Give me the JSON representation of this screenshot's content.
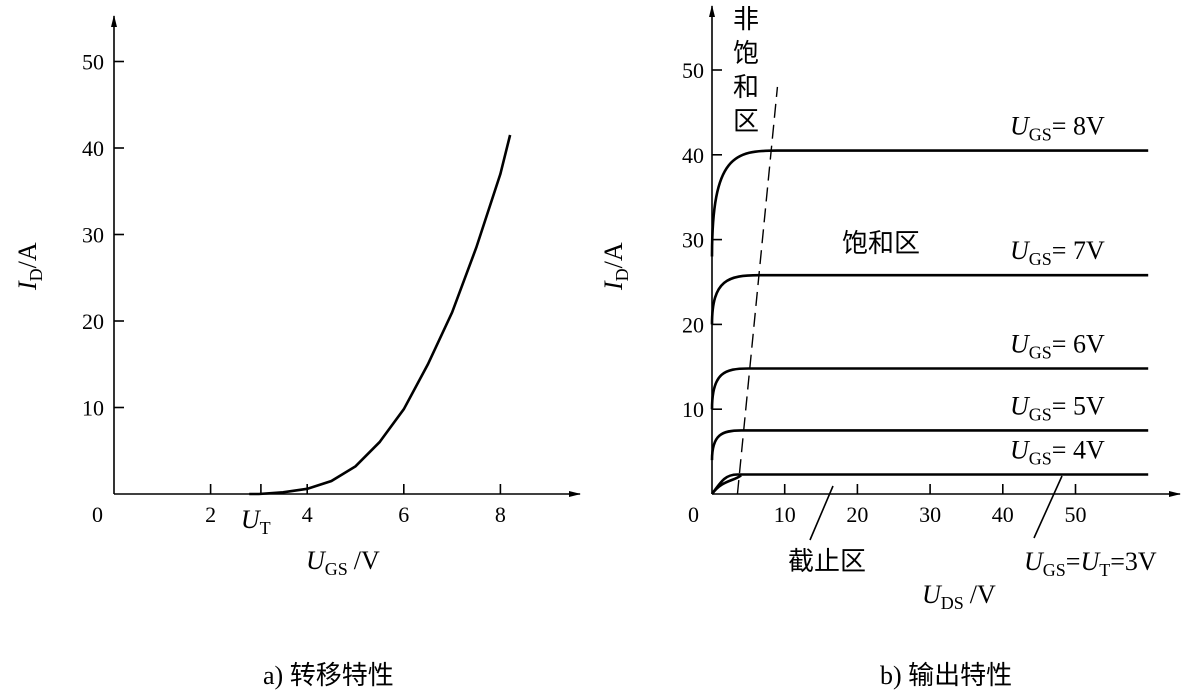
{
  "chart_data": [
    {
      "type": "line",
      "caption": "a) 转移特性",
      "xlabel": {
        "var": "U",
        "sub": "GS",
        "unit": "/V"
      },
      "ylabel": {
        "var": "I",
        "sub": "D",
        "unit": "/A"
      },
      "origin_label": "0",
      "xlim": [
        0,
        10
      ],
      "ylim": [
        0,
        55
      ],
      "x_ticks": [
        2,
        4,
        6,
        8
      ],
      "y_ticks": [
        10,
        20,
        30,
        40,
        50
      ],
      "threshold": {
        "x": 3,
        "var": "U",
        "sub": "T"
      },
      "series": [
        {
          "points": [
            [
              3.0,
              0
            ],
            [
              3.5,
              0.2
            ],
            [
              4.0,
              0.6
            ],
            [
              4.5,
              1.5
            ],
            [
              5.0,
              3.2
            ],
            [
              5.5,
              6.0
            ],
            [
              6.0,
              9.8
            ],
            [
              6.5,
              15.0
            ],
            [
              7.0,
              21.0
            ],
            [
              7.5,
              28.5
            ],
            [
              8.0,
              37.0
            ],
            [
              8.2,
              41.5
            ]
          ]
        }
      ]
    },
    {
      "type": "line",
      "caption": "b) 输出特性",
      "xlabel": {
        "var": "U",
        "sub": "DS",
        "unit": "/V"
      },
      "ylabel": {
        "var": "I",
        "sub": "D",
        "unit": "/A"
      },
      "origin_label": "0",
      "xlim": [
        0,
        65
      ],
      "ylim": [
        0,
        57
      ],
      "x_ticks": [
        10,
        20,
        30,
        40,
        50
      ],
      "y_ticks": [
        10,
        20,
        30,
        40,
        50
      ],
      "x_max_line": 60,
      "series": [
        {
          "label": "= 8V",
          "sat": 40.5,
          "start": 28,
          "knee": 9
        },
        {
          "label": "= 7V",
          "sat": 25.8,
          "start": 20,
          "knee": 6.5
        },
        {
          "label": "= 6V",
          "sat": 14.8,
          "start": 10,
          "knee": 5
        },
        {
          "label": "= 5V",
          "sat": 7.5,
          "start": 4,
          "knee": 4
        },
        {
          "label": "= 4V",
          "sat": 2.3,
          "start": 0,
          "knee": 3.5
        },
        {
          "sat": 0
        }
      ],
      "threshold_label": {
        "var1": "U",
        "sub1": "GS",
        "eq": "=",
        "var2": "U",
        "sub2": "T",
        "value": "=3V"
      },
      "region_labels": {
        "nonsat": [
          "非",
          "饱",
          "和",
          "区"
        ],
        "sat": "饱和区",
        "cutoff": "截止区"
      },
      "boundary": {
        "x0": 3.5,
        "y0": 0,
        "x1": 9,
        "y1": 48
      }
    }
  ]
}
